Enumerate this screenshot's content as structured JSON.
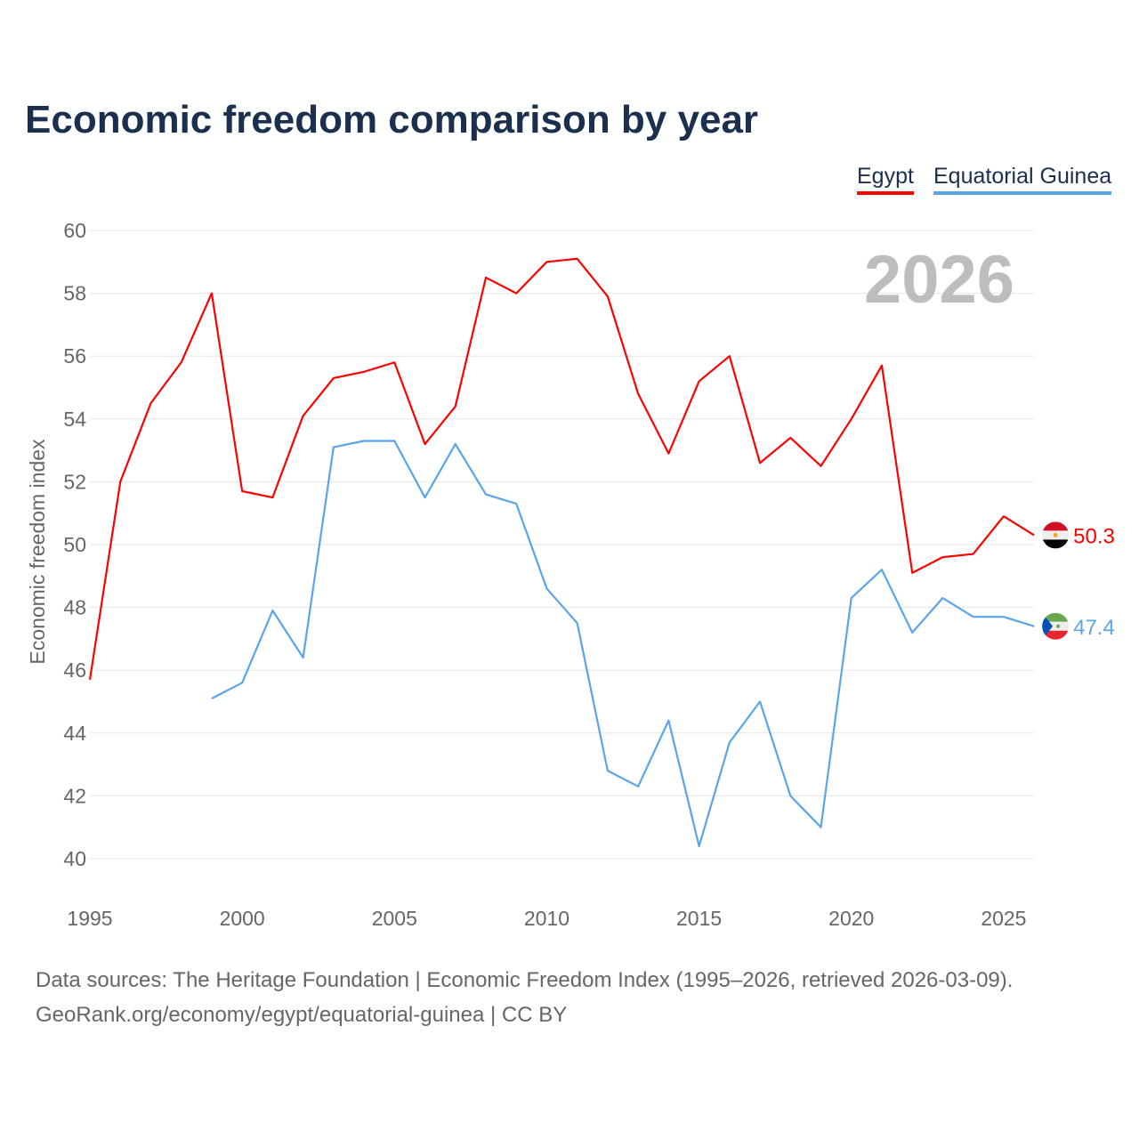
{
  "chart_data": {
    "type": "line",
    "title": "Economic freedom comparison by year",
    "xlabel": "",
    "ylabel": "Economic freedom index",
    "xlim": [
      1995,
      2026
    ],
    "ylim": [
      40,
      60
    ],
    "yticks": [
      40,
      42,
      44,
      46,
      48,
      50,
      52,
      54,
      56,
      58,
      60
    ],
    "xticks": [
      1995,
      2000,
      2005,
      2010,
      2015,
      2020,
      2025
    ],
    "grid": true,
    "legend_placement": "top-right",
    "year_watermark": "2026",
    "series": [
      {
        "name": "Egypt",
        "color": "#ff0000",
        "end_label": "50.3",
        "x": [
          1995,
          1996,
          1997,
          1998,
          1999,
          2000,
          2001,
          2002,
          2003,
          2004,
          2005,
          2006,
          2007,
          2008,
          2009,
          2010,
          2011,
          2012,
          2013,
          2014,
          2015,
          2016,
          2017,
          2018,
          2019,
          2020,
          2021,
          2022,
          2023,
          2024,
          2025,
          2026
        ],
        "values": [
          45.7,
          52.0,
          54.5,
          55.8,
          58.0,
          51.7,
          51.5,
          54.1,
          55.3,
          55.5,
          55.8,
          53.2,
          54.4,
          58.5,
          58.0,
          59.0,
          59.1,
          57.9,
          54.8,
          52.9,
          55.2,
          56.0,
          52.6,
          53.4,
          52.5,
          54.0,
          55.7,
          49.1,
          49.6,
          49.7,
          50.9,
          50.3
        ]
      },
      {
        "name": "Equatorial Guinea",
        "color": "#5ba4ea",
        "end_label": "47.4",
        "x": [
          1999,
          2000,
          2001,
          2002,
          2003,
          2004,
          2005,
          2006,
          2007,
          2008,
          2009,
          2010,
          2011,
          2012,
          2013,
          2014,
          2015,
          2016,
          2017,
          2018,
          2019,
          2020,
          2021,
          2022,
          2023,
          2024,
          2025,
          2026
        ],
        "values": [
          45.1,
          45.6,
          47.9,
          46.4,
          53.1,
          53.3,
          53.3,
          51.5,
          53.2,
          51.6,
          51.3,
          48.6,
          47.5,
          42.8,
          42.3,
          44.4,
          40.4,
          43.7,
          45.0,
          42.0,
          41.0,
          48.3,
          49.2,
          47.2,
          48.3,
          47.7,
          47.7,
          47.4
        ]
      }
    ]
  },
  "footer": {
    "line1": "Data sources: The Heritage Foundation | Economic Freedom Index (1995–2026, retrieved 2026-03-09).",
    "line2": "GeoRank.org/economy/egypt/equatorial-guinea | CC BY"
  }
}
